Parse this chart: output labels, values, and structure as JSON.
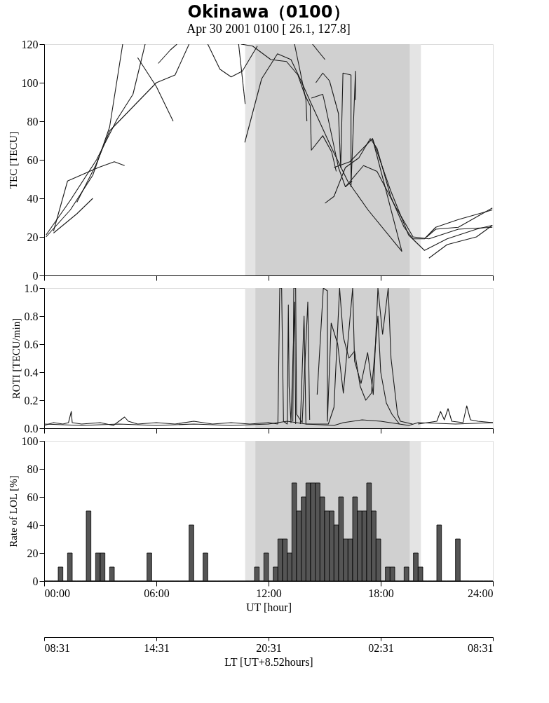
{
  "chart_data": [
    {
      "type": "line",
      "title": "Okinawa（0100）",
      "subtitle": "Apr 30  2001  0100 [ 26.1, 127.8]",
      "ylabel": "TEC [TECU]",
      "xlim": [
        0,
        24
      ],
      "xticks": [
        0,
        6,
        12,
        18,
        24
      ],
      "ylim": [
        0,
        120
      ],
      "yticks": [
        0,
        20,
        40,
        60,
        80,
        100,
        120
      ],
      "tick_labels": "y",
      "bands": [
        {
          "axis": "x",
          "from": 10.75,
          "to": 20.15,
          "color": "#e4e4e4"
        },
        {
          "axis": "x",
          "from": 11.3,
          "to": 19.55,
          "color": "#d0d0d0"
        }
      ],
      "series": [
        {
          "color": "#1a1a1a",
          "x": [
            0.1,
            1.4,
            2.6,
            3.5,
            4.2
          ],
          "values": [
            20,
            34,
            52,
            77,
            120
          ]
        },
        {
          "color": "#1a1a1a",
          "x": [
            0.1,
            1.4,
            2.8,
            3.9,
            4.75,
            5.4
          ],
          "values": [
            21,
            39,
            60,
            81,
            94,
            120
          ]
        },
        {
          "color": "#1a1a1a",
          "x": [
            0.5,
            1.25,
            2.9,
            3.75,
            4.3
          ],
          "values": [
            23,
            49,
            56,
            59,
            57
          ]
        },
        {
          "color": "#1a1a1a",
          "x": [
            0.5,
            1.75,
            2.6
          ],
          "values": [
            22,
            32,
            40
          ]
        },
        {
          "color": "#1a1a1a",
          "x": [
            1.75,
            2.75,
            3.5,
            5.1,
            6.0,
            7.0,
            7.75
          ],
          "values": [
            38,
            57,
            75,
            91,
            100,
            104,
            120
          ]
        },
        {
          "color": "#1a1a1a",
          "x": [
            5.0,
            6.0,
            6.9
          ],
          "values": [
            113,
            98,
            80
          ]
        },
        {
          "color": "#1a1a1a",
          "x": [
            6.1,
            6.75,
            7.1
          ],
          "values": [
            110,
            117,
            120
          ]
        },
        {
          "color": "#1a1a1a",
          "x": [
            8.75,
            9.4,
            10.0,
            10.6,
            11.4
          ],
          "values": [
            120,
            107,
            103,
            106,
            119
          ]
        },
        {
          "color": "#1a1a1a",
          "x": [
            10.4,
            10.75
          ],
          "values": [
            120,
            89
          ]
        },
        {
          "color": "#1a1a1a",
          "x": [
            10.73,
            11.63,
            12.48,
            13.2,
            13.69,
            14.29,
            15.38,
            16.23,
            17.32,
            19.13
          ],
          "values": [
            69,
            102,
            115,
            112,
            102,
            89,
            66,
            49,
            34,
            12.5
          ]
        },
        {
          "color": "#1a1a1a",
          "x": [
            10.54,
            11.15,
            12.12,
            12.96,
            13.57,
            13.93,
            14.23,
            14.29,
            14.9,
            15.38,
            15.62
          ],
          "values": [
            120,
            119,
            112,
            111,
            104,
            94,
            88,
            65,
            72.5,
            64,
            54
          ]
        },
        {
          "color": "#1a1a1a",
          "x": [
            13.39,
            13.69,
            14.0,
            14.05
          ],
          "values": [
            120,
            106,
            91,
            80
          ]
        },
        {
          "color": "#1a1a1a",
          "x": [
            14.35,
            15.02
          ],
          "values": [
            120,
            112
          ]
        },
        {
          "color": "#1a1a1a",
          "x": [
            14.53,
            14.9,
            15.26,
            15.74,
            15.86,
            15.98,
            16.41,
            16.41,
            16.65,
            16.65
          ],
          "values": [
            100,
            105,
            101,
            84,
            56,
            105,
            104,
            46,
            106,
            91
          ]
        },
        {
          "color": "#1a1a1a",
          "x": [
            14.29,
            14.9,
            15.02,
            15.74,
            16.11,
            16.47
          ],
          "values": [
            92,
            94,
            89,
            56,
            46,
            49
          ]
        },
        {
          "color": "#1a1a1a",
          "x": [
            15.02,
            15.5,
            16.11,
            16.83,
            17.44,
            17.8,
            18.53,
            19.25,
            19.73,
            20.34,
            20.94,
            22.15,
            23.97
          ],
          "values": [
            37.5,
            41,
            56,
            61,
            71,
            66,
            41,
            25,
            19,
            19,
            25,
            29,
            34
          ]
        },
        {
          "color": "#1a1a1a",
          "x": [
            15.5,
            16.35,
            17.56,
            18.53,
            19.49,
            20.34,
            21.55,
            23.12,
            23.97
          ],
          "values": [
            56,
            59,
            71,
            44,
            21,
            13,
            19,
            24,
            26
          ]
        },
        {
          "color": "#1a1a1a",
          "x": [
            16.11,
            17.08,
            17.8,
            18.77,
            19.73,
            20.58,
            22.15,
            23.97
          ],
          "values": [
            46,
            57,
            54,
            36,
            20,
            19,
            24,
            25
          ]
        },
        {
          "color": "#1a1a1a",
          "x": [
            20.58,
            21.55,
            23.12,
            23.97
          ],
          "values": [
            9,
            16,
            20,
            26
          ]
        },
        {
          "color": "#1a1a1a",
          "x": [
            20.46,
            20.94,
            22.15,
            23.97
          ],
          "values": [
            20,
            24,
            25,
            35
          ]
        },
        {
          "color": "#1a1a1a",
          "x": [
            17.56,
            19.13
          ],
          "values": [
            71,
            12.5
          ]
        }
      ]
    },
    {
      "type": "line",
      "ylabel": "ROTI [TECU/min]",
      "xlim": [
        0,
        24
      ],
      "xticks": [
        0,
        6,
        12,
        18,
        24
      ],
      "ylim": [
        0,
        1.0
      ],
      "yticks": [
        {
          "value": 0,
          "label": "0.0"
        },
        {
          "value": 0.2,
          "label": "0.2"
        },
        {
          "value": 0.4,
          "label": "0.4"
        },
        {
          "value": 0.6,
          "label": "0.6"
        },
        {
          "value": 0.8,
          "label": "0.8"
        },
        {
          "value": 1.0,
          "label": "1.0"
        }
      ],
      "tick_labels": "y",
      "bands": [
        {
          "axis": "x",
          "from": 10.75,
          "to": 20.15,
          "color": "#e4e4e4"
        },
        {
          "axis": "x",
          "from": 11.3,
          "to": 19.55,
          "color": "#d0d0d0"
        }
      ],
      "series": [
        {
          "color": "#1a1a1a",
          "x": [
            0,
            0.5,
            1.0,
            1.3,
            1.45,
            1.5,
            2,
            3,
            3.7,
            4.3,
            4.5,
            5,
            6,
            7,
            8,
            9,
            10,
            11,
            12,
            12.5
          ],
          "values": [
            0.02,
            0.04,
            0.03,
            0.04,
            0.12,
            0.04,
            0.03,
            0.04,
            0.02,
            0.08,
            0.05,
            0.03,
            0.04,
            0.03,
            0.05,
            0.03,
            0.04,
            0.03,
            0.04,
            0.03
          ]
        },
        {
          "color": "#1a1a1a",
          "x": [
            0,
            2,
            4,
            6,
            8,
            10,
            12,
            13,
            14,
            15.5,
            16,
            17,
            18,
            19.5,
            20,
            22,
            24
          ],
          "values": [
            0.03,
            0.02,
            0.03,
            0.02,
            0.03,
            0.02,
            0.03,
            0.05,
            0.03,
            0.02,
            0.04,
            0.06,
            0.05,
            0.02,
            0.04,
            0.03,
            0.04
          ]
        },
        {
          "color": "#1a1a1a",
          "x": [
            12.5,
            12.6,
            12.7,
            12.8,
            13.0,
            13.06,
            13.1,
            13.2,
            13.4,
            13.45
          ],
          "values": [
            0.03,
            1.0,
            1.0,
            0.05,
            0.03,
            0.88,
            0.3,
            0.04,
            0.9,
            0.03
          ]
        },
        {
          "color": "#1a1a1a",
          "x": [
            13.3,
            13.35,
            13.45,
            13.5,
            13.8,
            14.1,
            14.2
          ],
          "values": [
            0.05,
            1.0,
            1.0,
            0.1,
            0.04,
            0.9,
            0.06
          ]
        },
        {
          "color": "#1a1a1a",
          "x": [
            14.6,
            14.93,
            15.15,
            15.15,
            15.35,
            15.7,
            16.0,
            16.5,
            16.6,
            16.95,
            17.3,
            17.6,
            17.85,
            18.1,
            18.4,
            18.55,
            18.9,
            19.05,
            19.7
          ],
          "values": [
            0.24,
            1.0,
            0.98,
            0.05,
            0.75,
            0.6,
            0.25,
            1.0,
            0.48,
            0.32,
            0.54,
            0.24,
            1.0,
            0.67,
            1.0,
            0.5,
            0.1,
            0.05,
            0.03
          ]
        },
        {
          "color": "#1a1a1a",
          "x": [
            13.7,
            13.9,
            14.0,
            15.2,
            15.5,
            15.8,
            16.0,
            16.3,
            16.6,
            16.9,
            17.2,
            17.5,
            17.85,
            18.0,
            18.3,
            18.6,
            19.0
          ],
          "values": [
            0.03,
            0.8,
            0.03,
            0.03,
            0.15,
            1.0,
            0.65,
            0.5,
            0.55,
            0.3,
            0.2,
            0.25,
            0.8,
            0.4,
            0.18,
            0.1,
            0.03
          ]
        },
        {
          "color": "#1a1a1a",
          "x": [
            20,
            21.0,
            21.2,
            21.4,
            21.6,
            21.8,
            22.4,
            22.6,
            22.8,
            23.2,
            24
          ],
          "values": [
            0.03,
            0.05,
            0.12,
            0.06,
            0.14,
            0.05,
            0.04,
            0.16,
            0.06,
            0.05,
            0.04
          ]
        }
      ]
    },
    {
      "type": "histogram",
      "ylabel": "Rate of LOL [%]",
      "xlabel": "UT [hour]",
      "x2label": "LT [UT+8.52hours]",
      "color": "#555555",
      "xlim": [
        0,
        24
      ],
      "xticks": [
        {
          "value": 0,
          "label": "00:00"
        },
        {
          "value": 6,
          "label": "06:00"
        },
        {
          "value": 12,
          "label": "12:00"
        },
        {
          "value": 18,
          "label": "18:00"
        },
        {
          "value": 24,
          "label": "24:00"
        }
      ],
      "x2lim": [
        "2001-04-30T08:31",
        "2001-05-01T08:31"
      ],
      "x2ticks": [
        {
          "value": "2001-04-30T08:31",
          "label": "08:31"
        },
        {
          "value": "2001-04-30T14:31",
          "label": "14:31"
        },
        {
          "value": "2001-04-30T20:31",
          "label": "20:31"
        },
        {
          "value": "2001-05-01T02:31",
          "label": "02:31"
        },
        {
          "value": "2001-05-01T08:31",
          "label": "08:31"
        }
      ],
      "ylim": [
        0,
        100
      ],
      "yticks": [
        0,
        20,
        40,
        60,
        80,
        100
      ],
      "bands": [
        {
          "axis": "x",
          "from": 10.75,
          "to": 20.15,
          "color": "#e4e4e4"
        },
        {
          "axis": "x",
          "from": 11.3,
          "to": 19.55,
          "color": "#d0d0d0"
        }
      ],
      "bins": [
        0,
        0.25,
        0.5,
        0.75,
        1,
        1.25,
        1.5,
        1.75,
        2,
        2.25,
        2.5,
        2.75,
        3,
        3.25,
        3.5,
        3.75,
        4,
        4.25,
        4.5,
        4.75,
        5,
        5.25,
        5.5,
        5.75,
        6,
        6.25,
        6.5,
        6.75,
        7,
        7.25,
        7.5,
        7.75,
        8,
        8.25,
        8.5,
        8.75,
        9,
        9.25,
        9.5,
        9.75,
        10,
        10.25,
        10.5,
        10.75,
        11,
        11.25,
        11.5,
        11.75,
        12,
        12.25,
        12.5,
        12.75,
        13,
        13.25,
        13.5,
        13.75,
        14,
        14.25,
        14.5,
        14.75,
        15,
        15.25,
        15.5,
        15.75,
        16,
        16.25,
        16.5,
        16.75,
        17,
        17.25,
        17.5,
        17.75,
        18,
        18.25,
        18.5,
        18.75,
        19,
        19.25,
        19.5,
        19.75,
        20,
        20.25,
        20.5,
        20.75,
        21,
        21.25,
        21.5,
        21.75,
        22,
        22.25,
        22.5,
        22.75,
        23,
        23.25,
        23.5,
        23.75,
        24
      ],
      "values": [
        0,
        0,
        0,
        10,
        0,
        20,
        0,
        0,
        0,
        50,
        0,
        20,
        20,
        0,
        10,
        0,
        0,
        0,
        0,
        0,
        0,
        0,
        20,
        0,
        0,
        0,
        0,
        0,
        0,
        0,
        0,
        40,
        0,
        0,
        20,
        0,
        0,
        0,
        0,
        0,
        0,
        0,
        0,
        0,
        0,
        10,
        0,
        20,
        0,
        10,
        30,
        30,
        20,
        70,
        50,
        60,
        70,
        70,
        70,
        60,
        50,
        50,
        40,
        60,
        30,
        30,
        60,
        50,
        50,
        70,
        50,
        30,
        0,
        10,
        10,
        0,
        0,
        10,
        0,
        20,
        10,
        0,
        0,
        0,
        40,
        0,
        0,
        0,
        30,
        0,
        0,
        0,
        0,
        0,
        0,
        0
      ]
    }
  ]
}
